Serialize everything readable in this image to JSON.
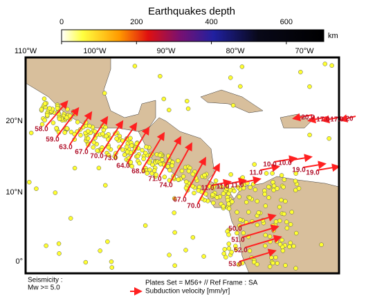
{
  "colorbar": {
    "title": "Earthquakes depth",
    "unit": "km",
    "ticks": [
      0,
      200,
      400,
      600
    ],
    "range": [
      0,
      700
    ]
  },
  "map": {
    "lon_labels": [
      "110°W",
      "100°W",
      "90°W",
      "80°W",
      "70°W"
    ],
    "lat_labels": [
      "20°N",
      "10°N",
      "0°"
    ],
    "velocity_labels": [
      "58.0",
      "59.0",
      "63.0",
      "67.0",
      "70.0",
      "73.0",
      "64.0",
      "68.0",
      "71.0",
      "74.0",
      "67.0",
      "70.0",
      "11.0",
      "11.0",
      "11.0",
      "11.0",
      "10.0",
      "10.0",
      "19.0",
      "19.0",
      "20.0",
      "17.0",
      "17.0",
      "20",
      "50.0",
      "51.0",
      "52.0",
      "53.0"
    ]
  },
  "legend": {
    "seismicity": "Seismicity :",
    "magnitude": "Mw >= 5.0",
    "plates": "Plates Set = M56+ // Ref Frame : SA",
    "subduction": "Subduction velocity [mm/yr]"
  }
}
